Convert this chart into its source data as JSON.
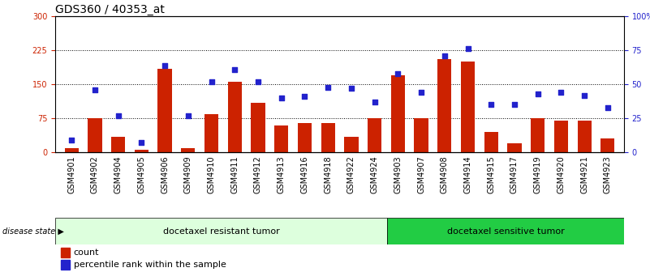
{
  "title": "GDS360 / 40353_at",
  "categories": [
    "GSM4901",
    "GSM4902",
    "GSM4904",
    "GSM4905",
    "GSM4906",
    "GSM4909",
    "GSM4910",
    "GSM4911",
    "GSM4912",
    "GSM4913",
    "GSM4916",
    "GSM4918",
    "GSM4922",
    "GSM4924",
    "GSM4903",
    "GSM4907",
    "GSM4908",
    "GSM4914",
    "GSM4915",
    "GSM4917",
    "GSM4919",
    "GSM4920",
    "GSM4921",
    "GSM4923"
  ],
  "counts": [
    10,
    75,
    35,
    5,
    185,
    10,
    85,
    155,
    110,
    60,
    65,
    65,
    35,
    75,
    170,
    75,
    205,
    200,
    45,
    20,
    75,
    70,
    70,
    30
  ],
  "percentiles": [
    9,
    46,
    27,
    7,
    64,
    27,
    52,
    61,
    52,
    40,
    41,
    48,
    47,
    37,
    58,
    44,
    71,
    76,
    35,
    35,
    43,
    44,
    42,
    33
  ],
  "group1_label": "docetaxel resistant tumor",
  "group1_count": 14,
  "group2_label": "docetaxel sensitive tumor",
  "group2_count": 10,
  "disease_state_label": "disease state",
  "legend_count_label": "count",
  "legend_percentile_label": "percentile rank within the sample",
  "ylim_left": [
    0,
    300
  ],
  "ylim_right": [
    0,
    100
  ],
  "yticks_left": [
    0,
    75,
    150,
    225,
    300
  ],
  "yticks_right": [
    0,
    25,
    50,
    75,
    100
  ],
  "yticklabels_left": [
    "0",
    "75",
    "150",
    "225",
    "300"
  ],
  "yticklabels_right": [
    "0",
    "25",
    "50",
    "75",
    "100%"
  ],
  "bar_color": "#cc2200",
  "dot_color": "#2222cc",
  "group1_bg": "#ddffdd",
  "group2_bg": "#22cc44",
  "grid_color": "#000000",
  "title_fontsize": 10,
  "tick_fontsize": 7,
  "annotation_fontsize": 8
}
